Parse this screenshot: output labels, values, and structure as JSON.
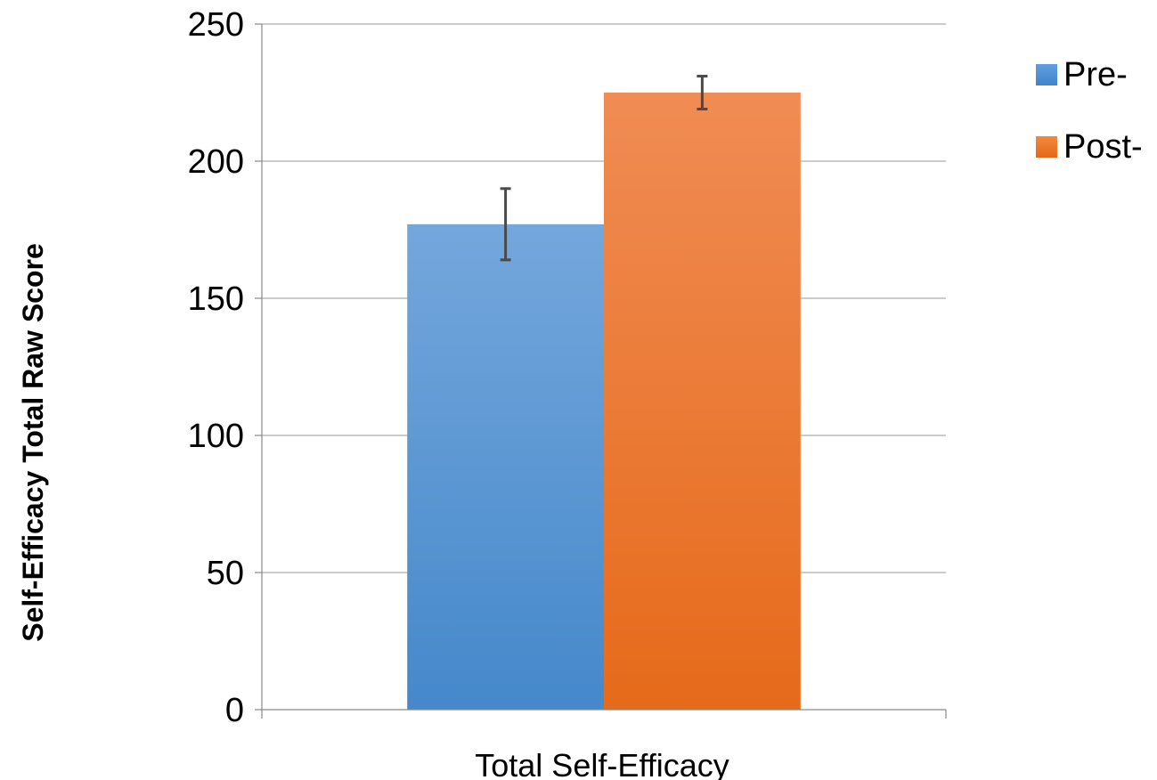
{
  "chart_data": {
    "type": "bar",
    "title": "",
    "xlabel": "Total Self-Efficacy",
    "ylabel": "Self-Efficacy Total Raw Score",
    "categories": [
      "Total Self-Efficacy"
    ],
    "series": [
      {
        "name": "Pre-",
        "values": [
          177
        ],
        "error": [
          13
        ],
        "color": "#4a90d9"
      },
      {
        "name": "Post-",
        "values": [
          225
        ],
        "error": [
          6
        ],
        "color": "#f07a22"
      }
    ],
    "ylim": [
      0,
      250
    ],
    "yticks": [
      0,
      50,
      100,
      150,
      200,
      250
    ],
    "grid": true,
    "legend_position": "right"
  }
}
